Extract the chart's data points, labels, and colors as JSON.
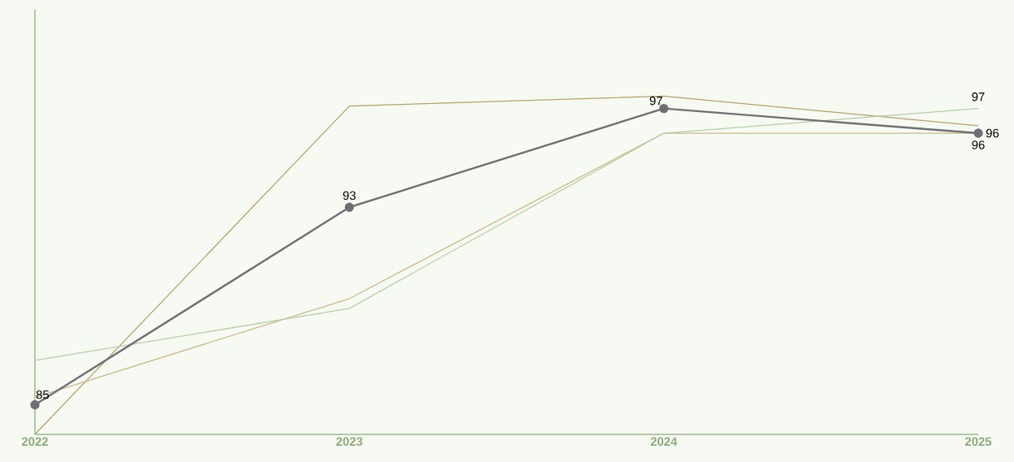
{
  "chart_data": {
    "type": "line",
    "categories": [
      "2022",
      "2023",
      "2024",
      "2025"
    ],
    "ylim": [
      83.8,
      101
    ],
    "grid": false,
    "series": [
      {
        "color": "#b4a262",
        "marker": "none",
        "values": [
          83.8,
          97.1,
          97.5,
          96.3
        ]
      },
      {
        "color": "#c8b984",
        "marker": "none",
        "values": [
          85.3,
          89.3,
          96,
          96
        ],
        "value_labels": [
          null,
          null,
          null,
          "96"
        ]
      },
      {
        "color": "#b3cea6",
        "marker": "none",
        "values": [
          86.8,
          88.9,
          96,
          97
        ],
        "value_labels": [
          null,
          null,
          null,
          "97"
        ]
      },
      {
        "color": "#6e6f73",
        "marker": "circle",
        "values": [
          85,
          93,
          97,
          96
        ],
        "value_labels": [
          "85",
          "93",
          "97",
          "96"
        ]
      }
    ]
  }
}
